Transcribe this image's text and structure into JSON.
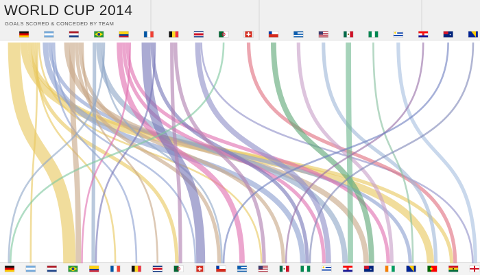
{
  "header": {
    "title": "WORLD CUP 2014",
    "subtitle": "GOALS SCORED & CONCEDED BY TEAM"
  },
  "chart_data": {
    "type": "chord-flow",
    "title": "WORLD CUP 2014",
    "subtitle": "GOALS SCORED & CONCEDED BY TEAM",
    "top_teams": [
      {
        "team": "Germany",
        "color": "#e8c860",
        "flag": "germany"
      },
      {
        "team": "Argentina",
        "color": "#8ca0d0",
        "flag": "argentina"
      },
      {
        "team": "Netherlands",
        "color": "#c8a888",
        "flag": "netherlands"
      },
      {
        "team": "Brazil",
        "color": "#90a8c8",
        "flag": "brazil"
      },
      {
        "team": "Colombia",
        "color": "#e070b0",
        "flag": "colombia"
      },
      {
        "team": "France",
        "color": "#7878b8",
        "flag": "france"
      },
      {
        "team": "Belgium",
        "color": "#b080b0",
        "flag": "belgium"
      },
      {
        "team": "Costa Rica",
        "color": "#9090c8",
        "flag": "costa-rica"
      },
      {
        "team": "Algeria",
        "color": "#80c8a0",
        "flag": "algeria"
      },
      {
        "team": "Switzerland",
        "color": "#e07080",
        "flag": "switzerland"
      },
      {
        "team": "Chile",
        "color": "#60a878",
        "flag": "chile"
      },
      {
        "team": "Greece",
        "color": "#c8a0c8",
        "flag": "greece"
      },
      {
        "team": "USA",
        "color": "#a0b8d8",
        "flag": "usa"
      },
      {
        "team": "Mexico",
        "color": "#70b890",
        "flag": "mexico"
      },
      {
        "team": "Nigeria",
        "color": "#88c0a0",
        "flag": "nigeria"
      },
      {
        "team": "Uruguay",
        "color": "#a8c0e0",
        "flag": "uruguay"
      },
      {
        "team": "Croatia",
        "color": "#9870a8",
        "flag": "croatia"
      },
      {
        "team": "Australia",
        "color": "#7080c0",
        "flag": "australia"
      },
      {
        "team": "Bosnia",
        "color": "#8088b8",
        "flag": "bosnia"
      }
    ],
    "bottom_teams": [
      {
        "team": "Germany",
        "flag": "germany"
      },
      {
        "team": "Argentina",
        "flag": "argentina"
      },
      {
        "team": "Netherlands",
        "flag": "netherlands"
      },
      {
        "team": "Brazil",
        "flag": "brazil"
      },
      {
        "team": "Colombia",
        "flag": "colombia"
      },
      {
        "team": "France",
        "flag": "france"
      },
      {
        "team": "Belgium",
        "flag": "belgium"
      },
      {
        "team": "Costa Rica",
        "flag": "costa-rica"
      },
      {
        "team": "Algeria",
        "flag": "algeria"
      },
      {
        "team": "Switzerland",
        "flag": "switzerland"
      },
      {
        "team": "Chile",
        "flag": "chile"
      },
      {
        "team": "Greece",
        "flag": "greece"
      },
      {
        "team": "USA",
        "flag": "usa"
      },
      {
        "team": "Mexico",
        "flag": "mexico"
      },
      {
        "team": "Nigeria",
        "flag": "nigeria"
      },
      {
        "team": "Uruguay",
        "flag": "uruguay"
      },
      {
        "team": "Croatia",
        "flag": "croatia"
      },
      {
        "team": "Australia",
        "flag": "australia"
      },
      {
        "team": "Ivory Coast",
        "flag": "ivory-coast"
      },
      {
        "team": "Bosnia",
        "flag": "bosnia"
      },
      {
        "team": "Portugal",
        "flag": "portugal"
      },
      {
        "team": "Ghana",
        "flag": "ghana"
      },
      {
        "team": "England",
        "flag": "england"
      }
    ],
    "flows": [
      {
        "from": "Germany",
        "to": "Brazil",
        "goals": 7
      },
      {
        "from": "Germany",
        "to": "Portugal",
        "goals": 4
      },
      {
        "from": "Germany",
        "to": "Ghana",
        "goals": 2
      },
      {
        "from": "Germany",
        "to": "Algeria",
        "goals": 2
      },
      {
        "from": "Germany",
        "to": "France",
        "goals": 1
      },
      {
        "from": "Germany",
        "to": "Argentina",
        "goals": 1
      },
      {
        "from": "Germany",
        "to": "USA",
        "goals": 1
      },
      {
        "from": "Argentina",
        "to": "Nigeria",
        "goals": 3
      },
      {
        "from": "Argentina",
        "to": "Bosnia",
        "goals": 2
      },
      {
        "from": "Argentina",
        "to": "Belgium",
        "goals": 1
      },
      {
        "from": "Argentina",
        "to": "Switzerland",
        "goals": 1
      },
      {
        "from": "Netherlands",
        "to": "Australia",
        "goals": 3
      },
      {
        "from": "Netherlands",
        "to": "Brazil",
        "goals": 3
      },
      {
        "from": "Netherlands",
        "to": "Chile",
        "goals": 2
      },
      {
        "from": "Netherlands",
        "to": "Mexico",
        "goals": 2
      },
      {
        "from": "Netherlands",
        "to": "Costa Rica",
        "goals": 1
      },
      {
        "from": "Brazil",
        "to": "Colombia",
        "goals": 2
      },
      {
        "from": "Brazil",
        "to": "Croatia",
        "goals": 3
      },
      {
        "from": "Brazil",
        "to": "Chile",
        "goals": 1
      },
      {
        "from": "Brazil",
        "to": "Germany",
        "goals": 1
      },
      {
        "from": "Colombia",
        "to": "Greece",
        "goals": 3
      },
      {
        "from": "Colombia",
        "to": "Uruguay",
        "goals": 2
      },
      {
        "from": "Colombia",
        "to": "Ivory Coast",
        "goals": 2
      },
      {
        "from": "Colombia",
        "to": "Brazil",
        "goals": 1
      },
      {
        "from": "France",
        "to": "Switzerland",
        "goals": 5
      },
      {
        "from": "France",
        "to": "Nigeria",
        "goals": 2
      },
      {
        "from": "France",
        "to": "Colombia",
        "goals": 1
      },
      {
        "from": "Belgium",
        "to": "Algeria",
        "goals": 2
      },
      {
        "from": "Belgium",
        "to": "USA",
        "goals": 2
      },
      {
        "from": "Costa Rica",
        "to": "Uruguay",
        "goals": 3
      },
      {
        "from": "Costa Rica",
        "to": "England",
        "goals": 1
      },
      {
        "from": "Algeria",
        "to": "Germany",
        "goals": 1
      },
      {
        "from": "Switzerland",
        "to": "Ghana",
        "goals": 2
      },
      {
        "from": "Chile",
        "to": "Australia",
        "goals": 3
      },
      {
        "from": "Greece",
        "to": "Ivory Coast",
        "goals": 2
      },
      {
        "from": "USA",
        "to": "Portugal",
        "goals": 2
      },
      {
        "from": "Mexico",
        "to": "Croatia",
        "goals": 3
      },
      {
        "from": "Nigeria",
        "to": "Bosnia",
        "goals": 1
      },
      {
        "from": "Uruguay",
        "to": "England",
        "goals": 2
      },
      {
        "from": "Croatia",
        "to": "Mexico",
        "goals": 1
      },
      {
        "from": "Australia",
        "to": "Chile",
        "goals": 1
      },
      {
        "from": "Bosnia",
        "to": "Nigeria",
        "goals": 1
      }
    ]
  }
}
